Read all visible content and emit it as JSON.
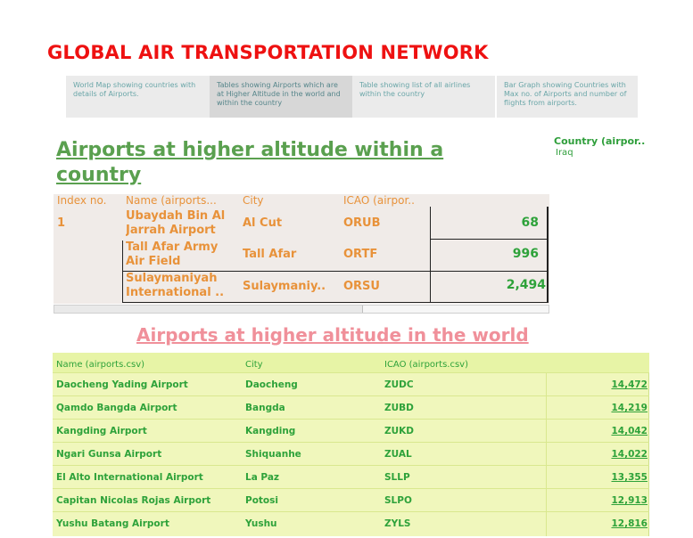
{
  "header": {
    "title": "GLOBAL AIR TRANSPORTATION NETWORK"
  },
  "tabs": [
    {
      "label": "World Map showing countries with details of Airports.",
      "active": false
    },
    {
      "label": "Tables showing Airports which are at Higher Altitude in the world and within the country",
      "active": true
    },
    {
      "label": "Table showing list of all airlines within the country",
      "active": false
    },
    {
      "label": "Bar Graph showing Countries with Max no. of Airports and number of flights from airports.",
      "active": false
    }
  ],
  "country_section": {
    "heading": "Airports at higher altitude within a country",
    "filter": {
      "title": "Country (airpor..",
      "value": "Iraq"
    },
    "columns": [
      "Index no.",
      "Name (airports...",
      "City",
      "ICAO (airpor.."
    ],
    "index": "1",
    "rows": [
      {
        "name": "Ubaydah Bin Al Jarrah Airport",
        "city": "Al Cut",
        "icao": "ORUB",
        "altitude": "68"
      },
      {
        "name": "Tall Afar Army Air Field",
        "city": "Tall Afar",
        "icao": "ORTF",
        "altitude": "996"
      },
      {
        "name": "Sulaymaniyah International ..",
        "city": "Sulaymaniy..",
        "icao": "ORSU",
        "altitude": "2,494"
      }
    ]
  },
  "world_section": {
    "heading": "Airports at higher altitude in the world",
    "columns": [
      "Name (airports.csv)",
      "City",
      "ICAO (airports.csv)"
    ],
    "rows": [
      {
        "name": "Daocheng Yading Airport",
        "city": "Daocheng",
        "icao": "ZUDC",
        "altitude": "14,472"
      },
      {
        "name": "Qamdo Bangda Airport",
        "city": "Bangda",
        "icao": "ZUBD",
        "altitude": "14,219"
      },
      {
        "name": "Kangding Airport",
        "city": "Kangding",
        "icao": "ZUKD",
        "altitude": "14,042"
      },
      {
        "name": "Ngari Gunsa Airport",
        "city": "Shiquanhe",
        "icao": "ZUAL",
        "altitude": "14,022"
      },
      {
        "name": "El Alto International Airport",
        "city": "La Paz",
        "icao": "SLLP",
        "altitude": "13,355"
      },
      {
        "name": "Capitan Nicolas Rojas Airport",
        "city": "Potosi",
        "icao": "SLPO",
        "altitude": "12,913"
      },
      {
        "name": "Yushu Batang Airport",
        "city": "Yushu",
        "icao": "ZYLS",
        "altitude": "12,816"
      }
    ]
  },
  "colors": {
    "title": "#ee1111",
    "country_heading": "#5aa04f",
    "country_text": "#e8923a",
    "green_value": "#2ea23a",
    "world_heading": "#f0909a",
    "world_bg": "#f0f7bc"
  }
}
